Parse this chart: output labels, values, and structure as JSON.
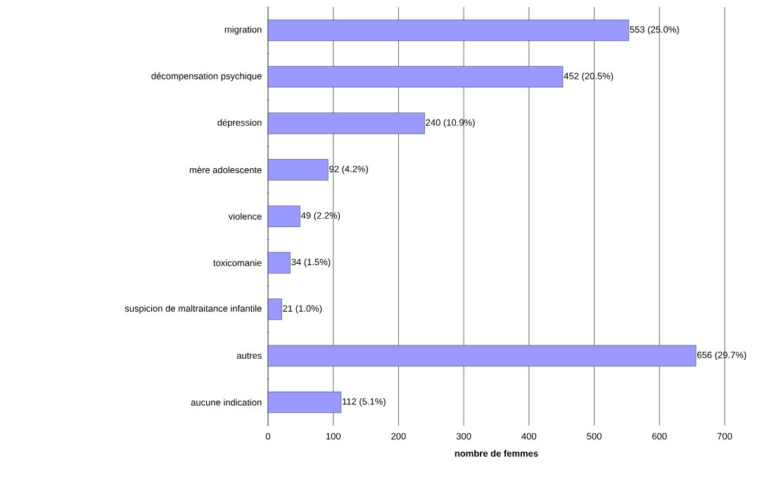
{
  "chart_data": {
    "type": "bar",
    "orientation": "horizontal",
    "xlabel": "nombre de femmes",
    "categories": [
      "migration",
      "décompensation psychique",
      "dépression",
      "mère adolescente",
      "violence",
      "toxicomanie",
      "suspicion de maltraitance infantile",
      "autres",
      "aucune indication"
    ],
    "values": [
      553,
      452,
      240,
      92,
      49,
      34,
      21,
      656,
      112
    ],
    "value_labels": [
      "553 (25.0%)",
      "452 (20.5%)",
      "240 (10.9%)",
      "92 (4.2%)",
      "49 (2.2%)",
      "34 (1.5%)",
      "21 (1.0%)",
      "656 (29.7%)",
      "112 (5.1%)"
    ],
    "color": "#9999ff",
    "xlim": [
      0,
      700
    ],
    "xticks": [
      0,
      100,
      200,
      300,
      400,
      500,
      600,
      700
    ],
    "grid": "x"
  }
}
